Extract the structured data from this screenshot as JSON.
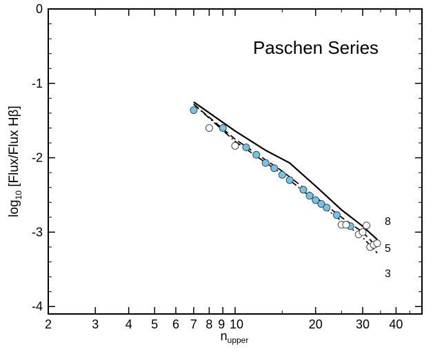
{
  "chart_data": {
    "type": "scatter",
    "title": "Paschen Series",
    "xlabel_main": "n",
    "xlabel_sub": "upper",
    "ylabel_pre": "log",
    "ylabel_sub": "10",
    "ylabel_post": " [Flux/Flux Hβ]",
    "xscale": "log",
    "xlim": [
      2,
      50
    ],
    "ylim": [
      -4.1,
      0
    ],
    "x_ticks": [
      2,
      3,
      4,
      5,
      6,
      7,
      8,
      9,
      10,
      20,
      30,
      40
    ],
    "x_tick_labels": [
      "2",
      "3",
      "4",
      "5",
      "6",
      "7",
      "8",
      "9",
      "10",
      "20",
      "30",
      "40"
    ],
    "y_ticks": [
      0,
      -1,
      -2,
      -3,
      -4
    ],
    "y_tick_labels": [
      "0",
      "-1",
      "-2",
      "-3",
      "-4"
    ],
    "colors": {
      "filled": "#6ec6f0",
      "open": "#ffffff",
      "edge": "#444444",
      "line": "#000000"
    },
    "series": [
      {
        "marker": "filled",
        "x": [
          7,
          9,
          11,
          12,
          13,
          14,
          15,
          16,
          18,
          19,
          20,
          21,
          22,
          24,
          27
        ],
        "y": [
          -1.36,
          -1.6,
          -1.86,
          -1.96,
          -2.07,
          -2.14,
          -2.23,
          -2.3,
          -2.43,
          -2.51,
          -2.57,
          -2.62,
          -2.67,
          -2.77,
          -2.92
        ]
      },
      {
        "marker": "open",
        "x": [
          8,
          10,
          25,
          26,
          29,
          30,
          31,
          32,
          33,
          34
        ],
        "y": [
          -1.6,
          -1.84,
          -2.9,
          -2.9,
          -3.03,
          -3.0,
          -2.91,
          -3.2,
          -3.17,
          -3.15
        ]
      }
    ],
    "models": [
      {
        "name": "8",
        "style": "solid",
        "x": [
          7,
          10,
          13,
          16,
          20,
          25,
          30,
          34
        ],
        "y": [
          -1.25,
          -1.64,
          -1.9,
          -2.07,
          -2.38,
          -2.7,
          -2.92,
          -3.1
        ]
      },
      {
        "name": "5",
        "style": "dashed",
        "x": [
          7,
          10,
          15,
          20,
          25,
          30,
          34
        ],
        "y": [
          -1.28,
          -1.75,
          -2.18,
          -2.53,
          -2.8,
          -3.0,
          -3.2
        ]
      },
      {
        "name": "3",
        "style": "dashdot",
        "x": [
          7,
          10,
          15,
          20,
          25,
          30,
          34
        ],
        "y": [
          -1.28,
          -1.78,
          -2.22,
          -2.58,
          -2.85,
          -3.07,
          -3.28
        ]
      }
    ]
  }
}
